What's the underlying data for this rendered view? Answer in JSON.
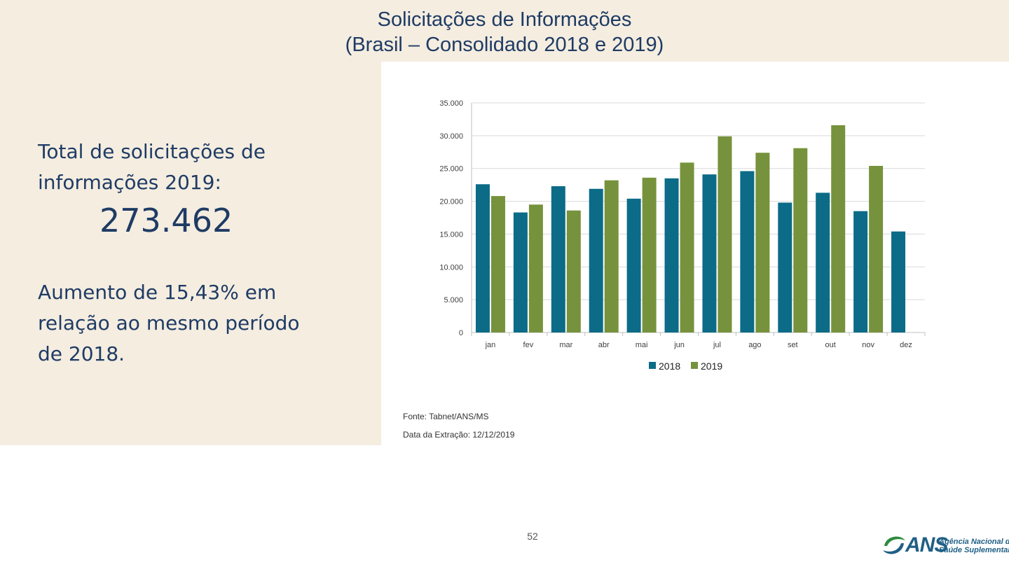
{
  "slide": {
    "title_line1": "Solicitações de Informações",
    "title_line2": "(Brasil – Consolidado 2018 e 2019)",
    "total_label_line1": "Total de solicitações de",
    "total_label_line2": "informações 2019:",
    "total_value": "273.462",
    "increase_line1": "Aumento de 15,43% em",
    "increase_line2": "relação ao mesmo período",
    "increase_line3": "de 2018.",
    "source": "Fonte: Tabnet/ANS/MS",
    "extraction_date": "Data da Extração: 12/12/2019",
    "page_number": "52"
  },
  "logo": {
    "name": "ANS",
    "text_line1": "Agência Nacional de",
    "text_line2": "Saúde Suplementar"
  },
  "colors": {
    "series_2018": "#0c6b87",
    "series_2019": "#76923c",
    "title": "#1f3b64",
    "background_panel": "#f4ede0"
  },
  "chart_data": {
    "type": "bar",
    "title": "",
    "xlabel": "",
    "ylabel": "",
    "categories": [
      "jan",
      "fev",
      "mar",
      "abr",
      "mai",
      "jun",
      "jul",
      "ago",
      "set",
      "out",
      "nov",
      "dez"
    ],
    "series": [
      {
        "name": "2018",
        "values": [
          22600,
          18300,
          22300,
          21900,
          20400,
          23500,
          24100,
          24600,
          19800,
          21300,
          18500,
          15400
        ]
      },
      {
        "name": "2019",
        "values": [
          20800,
          19500,
          18600,
          23200,
          23600,
          25900,
          29900,
          27400,
          28100,
          31600,
          25400,
          null
        ]
      }
    ],
    "ylim": [
      0,
      35000
    ],
    "yticks": [
      0,
      5000,
      10000,
      15000,
      20000,
      25000,
      30000,
      35000
    ],
    "ytick_labels": [
      "0",
      "5.000",
      "10.000",
      "15.000",
      "20.000",
      "25.000",
      "30.000",
      "35.000"
    ],
    "grid": true,
    "legend": "bottom-center"
  }
}
